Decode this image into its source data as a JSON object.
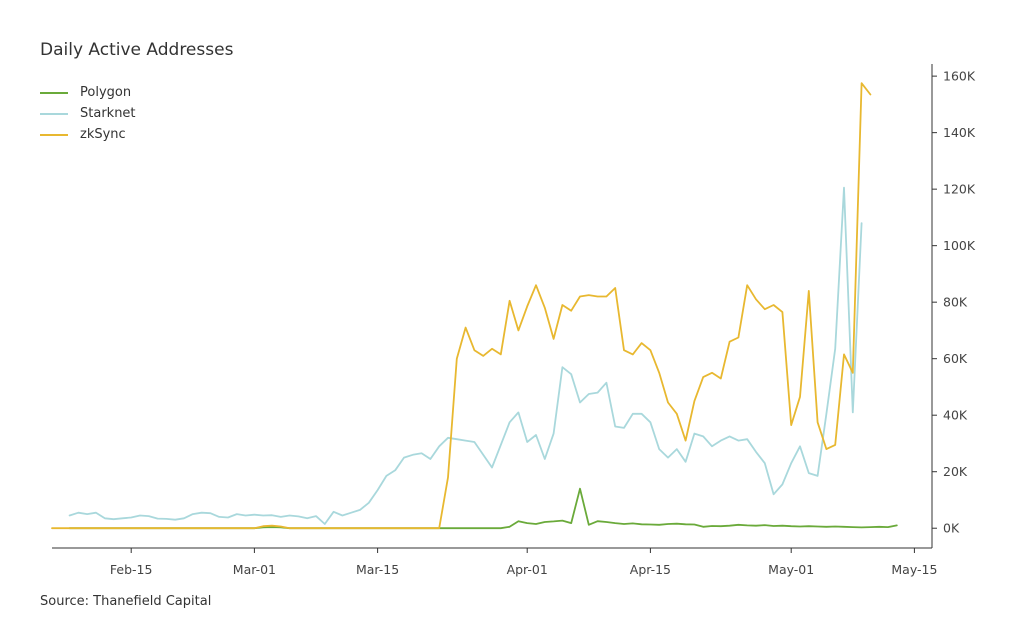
{
  "title": "Daily Active Addresses",
  "source": "Source: Thanefield Capital",
  "chart_data": {
    "type": "line",
    "title": "Daily Active Addresses",
    "legend_position": "top-left",
    "grid": false,
    "x_range": [
      "2023-02-06",
      "2023-05-17"
    ],
    "ylim": [
      -7000,
      165000
    ],
    "x_ticks": [
      {
        "date": "2023-02-15",
        "label": "Feb-15"
      },
      {
        "date": "2023-03-01",
        "label": "Mar-01"
      },
      {
        "date": "2023-03-15",
        "label": "Mar-15"
      },
      {
        "date": "2023-04-01",
        "label": "Apr-01"
      },
      {
        "date": "2023-04-15",
        "label": "Apr-15"
      },
      {
        "date": "2023-05-01",
        "label": "May-01"
      },
      {
        "date": "2023-05-15",
        "label": "May-15"
      }
    ],
    "y_ticks": [
      {
        "value": 0,
        "label": "0K"
      },
      {
        "value": 20000,
        "label": "20K"
      },
      {
        "value": 40000,
        "label": "40K"
      },
      {
        "value": 60000,
        "label": "60K"
      },
      {
        "value": 80000,
        "label": "80K"
      },
      {
        "value": 100000,
        "label": "100K"
      },
      {
        "value": 120000,
        "label": "120K"
      },
      {
        "value": 140000,
        "label": "140K"
      },
      {
        "value": 160000,
        "label": "160K"
      }
    ],
    "series": [
      {
        "name": "Polygon",
        "color": "#6aaa3a",
        "points": [
          [
            "2023-02-08",
            0
          ],
          [
            "2023-02-20",
            0
          ],
          [
            "2023-03-01",
            0
          ],
          [
            "2023-03-02",
            300
          ],
          [
            "2023-03-03",
            400
          ],
          [
            "2023-03-04",
            300
          ],
          [
            "2023-03-05",
            0
          ],
          [
            "2023-03-15",
            0
          ],
          [
            "2023-03-25",
            0
          ],
          [
            "2023-03-26",
            0
          ],
          [
            "2023-03-27",
            0
          ],
          [
            "2023-03-28",
            0
          ],
          [
            "2023-03-29",
            0
          ],
          [
            "2023-03-30",
            500
          ],
          [
            "2023-03-31",
            2500
          ],
          [
            "2023-04-01",
            1800
          ],
          [
            "2023-04-02",
            1500
          ],
          [
            "2023-04-03",
            2200
          ],
          [
            "2023-04-04",
            2400
          ],
          [
            "2023-04-05",
            2700
          ],
          [
            "2023-04-06",
            1800
          ],
          [
            "2023-04-07",
            14000
          ],
          [
            "2023-04-08",
            1200
          ],
          [
            "2023-04-09",
            2500
          ],
          [
            "2023-04-10",
            2200
          ],
          [
            "2023-04-11",
            1800
          ],
          [
            "2023-04-12",
            1500
          ],
          [
            "2023-04-13",
            1700
          ],
          [
            "2023-04-14",
            1400
          ],
          [
            "2023-04-15",
            1300
          ],
          [
            "2023-04-16",
            1200
          ],
          [
            "2023-04-17",
            1500
          ],
          [
            "2023-04-18",
            1600
          ],
          [
            "2023-04-19",
            1400
          ],
          [
            "2023-04-20",
            1300
          ],
          [
            "2023-04-21",
            500
          ],
          [
            "2023-04-22",
            800
          ],
          [
            "2023-04-23",
            700
          ],
          [
            "2023-04-24",
            900
          ],
          [
            "2023-04-25",
            1200
          ],
          [
            "2023-04-26",
            1000
          ],
          [
            "2023-04-27",
            900
          ],
          [
            "2023-04-28",
            1100
          ],
          [
            "2023-04-29",
            800
          ],
          [
            "2023-04-30",
            900
          ],
          [
            "2023-05-01",
            700
          ],
          [
            "2023-05-02",
            600
          ],
          [
            "2023-05-03",
            700
          ],
          [
            "2023-05-04",
            600
          ],
          [
            "2023-05-05",
            500
          ],
          [
            "2023-05-06",
            600
          ],
          [
            "2023-05-07",
            500
          ],
          [
            "2023-05-08",
            400
          ],
          [
            "2023-05-09",
            300
          ],
          [
            "2023-05-10",
            400
          ],
          [
            "2023-05-11",
            500
          ],
          [
            "2023-05-12",
            400
          ],
          [
            "2023-05-13",
            1000
          ]
        ]
      },
      {
        "name": "Starknet",
        "color": "#a9d8dc",
        "points": [
          [
            "2023-02-08",
            4500
          ],
          [
            "2023-02-09",
            5500
          ],
          [
            "2023-02-10",
            5000
          ],
          [
            "2023-02-11",
            5500
          ],
          [
            "2023-02-12",
            3500
          ],
          [
            "2023-02-13",
            3200
          ],
          [
            "2023-02-14",
            3500
          ],
          [
            "2023-02-15",
            3800
          ],
          [
            "2023-02-16",
            4500
          ],
          [
            "2023-02-17",
            4300
          ],
          [
            "2023-02-18",
            3400
          ],
          [
            "2023-02-19",
            3300
          ],
          [
            "2023-02-20",
            3000
          ],
          [
            "2023-02-21",
            3500
          ],
          [
            "2023-02-22",
            5000
          ],
          [
            "2023-02-23",
            5500
          ],
          [
            "2023-02-24",
            5300
          ],
          [
            "2023-02-25",
            4000
          ],
          [
            "2023-02-26",
            3800
          ],
          [
            "2023-02-27",
            5000
          ],
          [
            "2023-02-28",
            4500
          ],
          [
            "2023-03-01",
            4800
          ],
          [
            "2023-03-02",
            4500
          ],
          [
            "2023-03-03",
            4600
          ],
          [
            "2023-03-04",
            4000
          ],
          [
            "2023-03-05",
            4500
          ],
          [
            "2023-03-06",
            4200
          ],
          [
            "2023-03-07",
            3500
          ],
          [
            "2023-03-08",
            4300
          ],
          [
            "2023-03-09",
            1500
          ],
          [
            "2023-03-10",
            5800
          ],
          [
            "2023-03-11",
            4500
          ],
          [
            "2023-03-12",
            5500
          ],
          [
            "2023-03-13",
            6500
          ],
          [
            "2023-03-14",
            9000
          ],
          [
            "2023-03-15",
            13500
          ],
          [
            "2023-03-16",
            18500
          ],
          [
            "2023-03-17",
            20500
          ],
          [
            "2023-03-18",
            25000
          ],
          [
            "2023-03-19",
            26000
          ],
          [
            "2023-03-20",
            26500
          ],
          [
            "2023-03-21",
            24500
          ],
          [
            "2023-03-22",
            29000
          ],
          [
            "2023-03-23",
            32000
          ],
          [
            "2023-03-24",
            31500
          ],
          [
            "2023-03-25",
            31000
          ],
          [
            "2023-03-26",
            30500
          ],
          [
            "2023-03-27",
            26000
          ],
          [
            "2023-03-28",
            21500
          ],
          [
            "2023-03-29",
            29500
          ],
          [
            "2023-03-30",
            37500
          ],
          [
            "2023-03-31",
            41000
          ],
          [
            "2023-04-01",
            30500
          ],
          [
            "2023-04-02",
            33000
          ],
          [
            "2023-04-03",
            24500
          ],
          [
            "2023-04-04",
            33500
          ],
          [
            "2023-04-05",
            57000
          ],
          [
            "2023-04-06",
            54500
          ],
          [
            "2023-04-07",
            44500
          ],
          [
            "2023-04-08",
            47500
          ],
          [
            "2023-04-09",
            48000
          ],
          [
            "2023-04-10",
            51500
          ],
          [
            "2023-04-11",
            36000
          ],
          [
            "2023-04-12",
            35500
          ],
          [
            "2023-04-13",
            40500
          ],
          [
            "2023-04-14",
            40500
          ],
          [
            "2023-04-15",
            37500
          ],
          [
            "2023-04-16",
            28000
          ],
          [
            "2023-04-17",
            25000
          ],
          [
            "2023-04-18",
            28000
          ],
          [
            "2023-04-19",
            23500
          ],
          [
            "2023-04-20",
            33500
          ],
          [
            "2023-04-21",
            32500
          ],
          [
            "2023-04-22",
            29000
          ],
          [
            "2023-04-23",
            31000
          ],
          [
            "2023-04-24",
            32500
          ],
          [
            "2023-04-25",
            31000
          ],
          [
            "2023-04-26",
            31500
          ],
          [
            "2023-04-27",
            27000
          ],
          [
            "2023-04-28",
            23000
          ],
          [
            "2023-04-29",
            12000
          ],
          [
            "2023-04-30",
            15500
          ],
          [
            "2023-05-01",
            23000
          ],
          [
            "2023-05-02",
            29000
          ],
          [
            "2023-05-03",
            19500
          ],
          [
            "2023-05-04",
            18500
          ],
          [
            "2023-05-05",
            40500
          ],
          [
            "2023-05-06",
            63500
          ],
          [
            "2023-05-07",
            120500
          ],
          [
            "2023-05-08",
            41000
          ],
          [
            "2023-05-09",
            108000
          ]
        ]
      },
      {
        "name": "zkSync",
        "color": "#e8b830",
        "points": [
          [
            "2023-02-06",
            0
          ],
          [
            "2023-02-20",
            0
          ],
          [
            "2023-03-01",
            0
          ],
          [
            "2023-03-02",
            700
          ],
          [
            "2023-03-03",
            900
          ],
          [
            "2023-03-04",
            600
          ],
          [
            "2023-03-05",
            0
          ],
          [
            "2023-03-15",
            0
          ],
          [
            "2023-03-21",
            0
          ],
          [
            "2023-03-22",
            0
          ],
          [
            "2023-03-23",
            18000
          ],
          [
            "2023-03-24",
            60000
          ],
          [
            "2023-03-25",
            71000
          ],
          [
            "2023-03-26",
            63000
          ],
          [
            "2023-03-27",
            61000
          ],
          [
            "2023-03-28",
            63500
          ],
          [
            "2023-03-29",
            61500
          ],
          [
            "2023-03-30",
            80500
          ],
          [
            "2023-03-31",
            70000
          ],
          [
            "2023-04-01",
            78500
          ],
          [
            "2023-04-02",
            86000
          ],
          [
            "2023-04-03",
            78000
          ],
          [
            "2023-04-04",
            67000
          ],
          [
            "2023-04-05",
            79000
          ],
          [
            "2023-04-06",
            77000
          ],
          [
            "2023-04-07",
            82000
          ],
          [
            "2023-04-08",
            82500
          ],
          [
            "2023-04-09",
            82000
          ],
          [
            "2023-04-10",
            82000
          ],
          [
            "2023-04-11",
            85000
          ],
          [
            "2023-04-12",
            63000
          ],
          [
            "2023-04-13",
            61500
          ],
          [
            "2023-04-14",
            65500
          ],
          [
            "2023-04-15",
            63000
          ],
          [
            "2023-04-16",
            55000
          ],
          [
            "2023-04-17",
            44500
          ],
          [
            "2023-04-18",
            40500
          ],
          [
            "2023-04-19",
            31000
          ],
          [
            "2023-04-20",
            45000
          ],
          [
            "2023-04-21",
            53500
          ],
          [
            "2023-04-22",
            55000
          ],
          [
            "2023-04-23",
            53000
          ],
          [
            "2023-04-24",
            66000
          ],
          [
            "2023-04-25",
            67500
          ],
          [
            "2023-04-26",
            86000
          ],
          [
            "2023-04-27",
            81000
          ],
          [
            "2023-04-28",
            77500
          ],
          [
            "2023-04-29",
            79000
          ],
          [
            "2023-04-30",
            76500
          ],
          [
            "2023-05-01",
            36500
          ],
          [
            "2023-05-02",
            46500
          ],
          [
            "2023-05-03",
            84000
          ],
          [
            "2023-05-04",
            37500
          ],
          [
            "2023-05-05",
            28000
          ],
          [
            "2023-05-06",
            29500
          ],
          [
            "2023-05-07",
            61500
          ],
          [
            "2023-05-08",
            55000
          ],
          [
            "2023-05-09",
            157500
          ],
          [
            "2023-05-10",
            153500
          ]
        ]
      }
    ]
  }
}
